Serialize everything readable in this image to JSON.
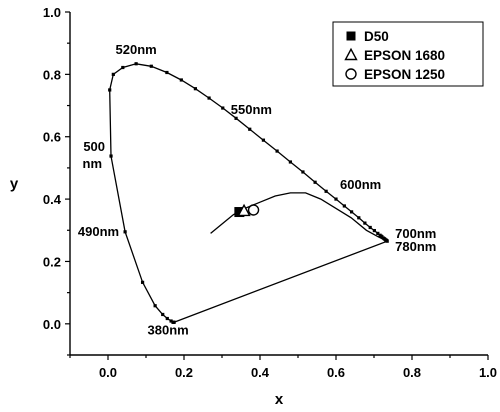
{
  "chart_data": {
    "type": "scatter",
    "xlabel": "x",
    "ylabel": "y",
    "xlim": [
      -0.1,
      1.0
    ],
    "ylim": [
      -0.1,
      1.0
    ],
    "xticks": [
      0.0,
      0.2,
      0.4,
      0.6,
      0.8,
      1.0
    ],
    "yticks": [
      0.0,
      0.2,
      0.4,
      0.6,
      0.8,
      1.0
    ],
    "xtick_labels": [
      "0.0",
      "0.2",
      "0.4",
      "0.6",
      "0.8",
      "1.0"
    ],
    "ytick_labels": [
      "0.0",
      "0.2",
      "0.4",
      "0.6",
      "0.8",
      "1.0"
    ],
    "legend_position": "top-right",
    "spectral_locus": {
      "x": [
        0.174,
        0.173,
        0.171,
        0.166,
        0.156,
        0.144,
        0.124,
        0.091,
        0.045,
        0.008,
        0.0045,
        0.014,
        0.039,
        0.074,
        0.114,
        0.155,
        0.193,
        0.23,
        0.266,
        0.302,
        0.337,
        0.373,
        0.409,
        0.445,
        0.48,
        0.513,
        0.545,
        0.574,
        0.6,
        0.622,
        0.641,
        0.66,
        0.676,
        0.69,
        0.701,
        0.71,
        0.716,
        0.719,
        0.721,
        0.725,
        0.727,
        0.729,
        0.731,
        0.732,
        0.733,
        0.734,
        0.7347
      ],
      "y": [
        0.005,
        0.005,
        0.005,
        0.009,
        0.017,
        0.03,
        0.058,
        0.133,
        0.295,
        0.538,
        0.75,
        0.8,
        0.822,
        0.834,
        0.826,
        0.806,
        0.782,
        0.754,
        0.724,
        0.692,
        0.659,
        0.624,
        0.589,
        0.554,
        0.519,
        0.487,
        0.454,
        0.425,
        0.4,
        0.378,
        0.359,
        0.34,
        0.323,
        0.309,
        0.299,
        0.29,
        0.284,
        0.281,
        0.279,
        0.275,
        0.273,
        0.271,
        0.269,
        0.268,
        0.267,
        0.266,
        0.265
      ]
    },
    "planckian_locus": {
      "x": [
        0.27,
        0.3,
        0.33,
        0.36,
        0.4,
        0.44,
        0.48,
        0.52,
        0.56,
        0.6,
        0.64,
        0.68,
        0.71,
        0.7347
      ],
      "y": [
        0.29,
        0.32,
        0.35,
        0.37,
        0.39,
        0.41,
        0.42,
        0.42,
        0.4,
        0.37,
        0.34,
        0.3,
        0.28,
        0.265
      ]
    },
    "wavelength_labels": [
      {
        "text": "520nm",
        "x": 0.074,
        "y": 0.834
      },
      {
        "text": "550nm",
        "x": 0.302,
        "y": 0.692
      },
      {
        "text": "500",
        "x": 0.008,
        "y": 0.538
      },
      {
        "text": "nm",
        "x": 0.008,
        "y": 0.538
      },
      {
        "text": "490nm",
        "x": 0.045,
        "y": 0.295
      },
      {
        "text": "600nm",
        "x": 0.6,
        "y": 0.4
      },
      {
        "text": "700nm",
        "x": 0.7347,
        "y": 0.265
      },
      {
        "text": "780nm",
        "x": 0.7347,
        "y": 0.265
      },
      {
        "text": "380nm",
        "x": 0.174,
        "y": 0.005
      }
    ],
    "series": [
      {
        "name": "D50",
        "marker": "filled-square",
        "x": [
          0.3457
        ],
        "y": [
          0.3585
        ]
      },
      {
        "name": "EPSON 1680",
        "marker": "open-triangle",
        "x": [
          0.358
        ],
        "y": [
          0.362
        ]
      },
      {
        "name": "EPSON 1250",
        "marker": "open-circle",
        "x": [
          0.383
        ],
        "y": [
          0.365
        ]
      }
    ]
  }
}
